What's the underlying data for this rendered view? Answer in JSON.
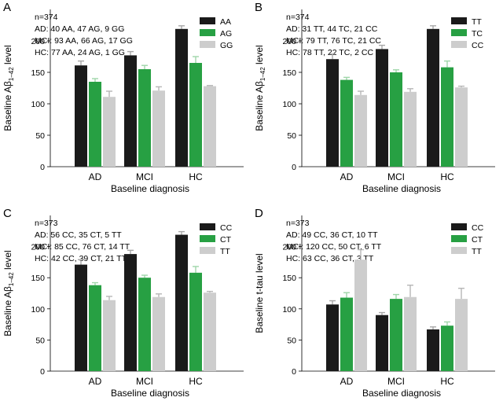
{
  "figure_colors": {
    "black": "#1a1a1a",
    "green": "#27a043",
    "light": "#cdcdcd",
    "err_black": "#a7a7a7",
    "err_green": "#9fd6a9",
    "err_light": "#b7b7b7"
  },
  "chart_data": [
    {
      "type": "bar",
      "panel": "A",
      "n_label": "n=374",
      "info_lines": [
        "AD: 40 AA, 47 AG, 9 GG",
        "MCI: 93 AA, 66 AG, 17 GG",
        "HC: 77 AA, 24 AG, 1 GG"
      ],
      "ylabel_prefix": "Baseline A",
      "ylabel_beta": "β",
      "ylabel_sub": "1–42",
      "ylabel_suffix": " level",
      "xlabel": "Baseline diagnosis",
      "categories": [
        "AD",
        "MCI",
        "HC"
      ],
      "ylim": [
        0,
        250
      ],
      "yticks": [
        "0",
        "50",
        "100",
        "150",
        "200"
      ],
      "legend_position": "top-right",
      "series": [
        {
          "name": "AA",
          "values": [
            161,
            177,
            219
          ],
          "errors": [
            7,
            6,
            5
          ]
        },
        {
          "name": "AG",
          "values": [
            135,
            155,
            165
          ],
          "errors": [
            5,
            6,
            10
          ]
        },
        {
          "name": "GG",
          "values": [
            111,
            121,
            128
          ],
          "errors": [
            9,
            6,
            1
          ]
        }
      ]
    },
    {
      "type": "bar",
      "panel": "B",
      "n_label": "n=374",
      "info_lines": [
        "AD: 31 TT, 44 TC, 21 CC",
        "MCI: 79 TT, 76 TC, 21 CC",
        "HC: 78 TT, 22 TC, 2 CC"
      ],
      "ylabel_prefix": "Baseline A",
      "ylabel_beta": "β",
      "ylabel_sub": "1–42",
      "ylabel_suffix": " level",
      "xlabel": "Baseline diagnosis",
      "categories": [
        "AD",
        "MCI",
        "HC"
      ],
      "ylim": [
        0,
        250
      ],
      "yticks": [
        "0",
        "50",
        "100",
        "150",
        "200"
      ],
      "legend_position": "top-right",
      "series": [
        {
          "name": "TT",
          "values": [
            171,
            187,
            219
          ],
          "errors": [
            8,
            6,
            5
          ]
        },
        {
          "name": "TC",
          "values": [
            138,
            150,
            158
          ],
          "errors": [
            4,
            4,
            10
          ]
        },
        {
          "name": "CC",
          "values": [
            114,
            119,
            126
          ],
          "errors": [
            6,
            5,
            2
          ]
        }
      ]
    },
    {
      "type": "bar",
      "panel": "C",
      "n_label": "n=373",
      "info_lines": [
        "AD: 56 CC, 35 CT, 5 TT",
        "MCI: 85 CC, 76 CT, 14 TT",
        "HC: 42 CC, 39 CT, 21 TT"
      ],
      "ylabel_prefix": "Baseline A",
      "ylabel_beta": "β",
      "ylabel_sub": "1–42",
      "ylabel_suffix": " level",
      "xlabel": "Baseline diagnosis",
      "categories": [
        "AD",
        "MCI",
        "HC"
      ],
      "ylim": [
        0,
        250
      ],
      "yticks": [
        "0",
        "50",
        "100",
        "150",
        "200"
      ],
      "legend_position": "top-right",
      "series": [
        {
          "name": "CC",
          "values": [
            171,
            188,
            219
          ],
          "errors": [
            8,
            6,
            5
          ]
        },
        {
          "name": "CT",
          "values": [
            138,
            150,
            158
          ],
          "errors": [
            4,
            4,
            10
          ]
        },
        {
          "name": "TT",
          "values": [
            114,
            119,
            126
          ],
          "errors": [
            6,
            5,
            2
          ]
        }
      ]
    },
    {
      "type": "bar",
      "panel": "D",
      "n_label": "n=373",
      "info_lines": [
        "AD: 49 CC, 36 CT, 10 TT",
        "MCI: 120 CC, 50 CT, 6 TT",
        "HC: 63 CC, 36 CT, 3 TT"
      ],
      "ylabel_prefix": "Baseline t-tau level",
      "ylabel_beta": "",
      "ylabel_sub": "",
      "ylabel_suffix": "",
      "xlabel": "Baseline diagnosis",
      "categories": [
        "AD",
        "MCI",
        "HC"
      ],
      "ylim": [
        0,
        250
      ],
      "yticks": [
        "0",
        "50",
        "100",
        "150",
        "200"
      ],
      "legend_position": "top-right",
      "series": [
        {
          "name": "CC",
          "values": [
            107,
            90,
            67
          ],
          "errors": [
            6,
            4,
            4
          ]
        },
        {
          "name": "CT",
          "values": [
            118,
            116,
            73
          ],
          "errors": [
            8,
            7,
            6
          ]
        },
        {
          "name": "TT",
          "values": [
            179,
            119,
            116
          ],
          "errors": [
            16,
            19,
            17
          ]
        }
      ]
    }
  ]
}
